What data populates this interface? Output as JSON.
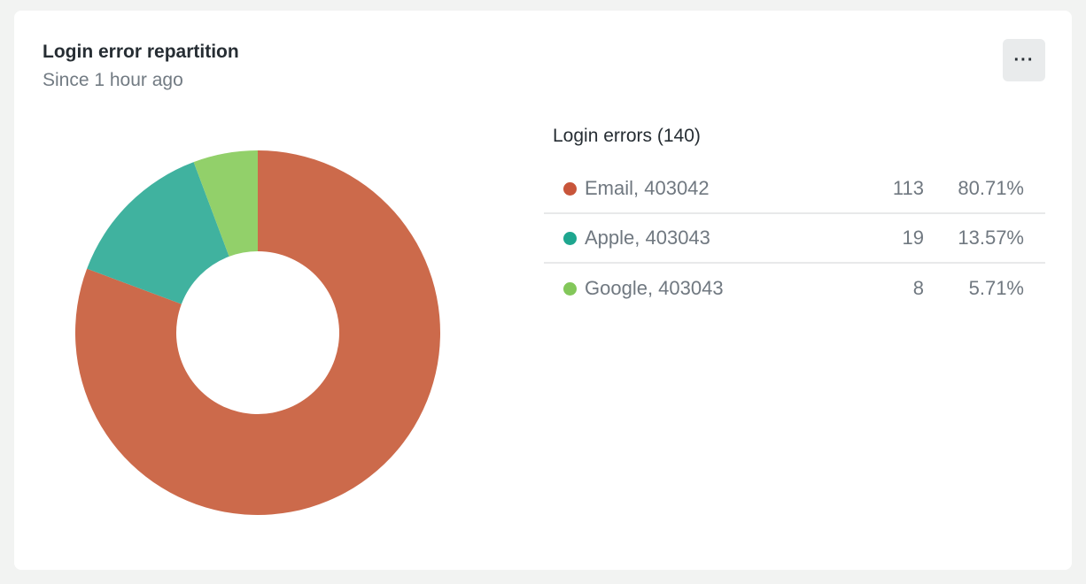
{
  "header": {
    "title": "Login error repartition",
    "subtitle": "Since 1 hour ago",
    "menu_icon": "more-horizontal-icon",
    "menu_label": "···"
  },
  "chart_data": {
    "type": "pie",
    "donut": true,
    "legend_title": "Login errors (140)",
    "legend_placement": "right",
    "total": 140,
    "series": [
      {
        "name": "Email, 403042",
        "value": 113,
        "percent": "80.71%",
        "color": "#cc6a4b",
        "dot_color": "#c8553a"
      },
      {
        "name": "Apple, 403043",
        "value": 19,
        "percent": "13.57%",
        "color": "#40b29f",
        "dot_color": "#1ea68f"
      },
      {
        "name": "Google, 403043",
        "value": 8,
        "percent": "5.71%",
        "color": "#92d06a",
        "dot_color": "#83c75a"
      }
    ]
  }
}
